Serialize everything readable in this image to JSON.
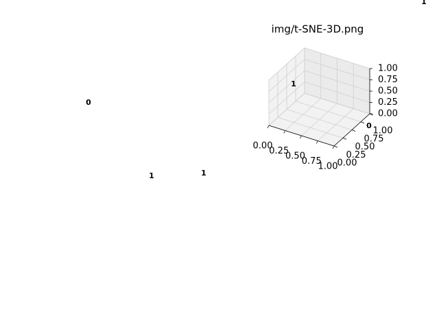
{
  "chart_data": {
    "type": "scatter3d",
    "title": "img/t-SNE-3D.png",
    "xlim": [
      0,
      1
    ],
    "ylim": [
      0,
      1
    ],
    "zlim": [
      0,
      1
    ],
    "xticks": [
      {
        "value": 0,
        "label": "0.00"
      },
      {
        "value": 0.25,
        "label": "0.25"
      },
      {
        "value": 0.5,
        "label": "0.50"
      },
      {
        "value": 0.75,
        "label": "0.75"
      },
      {
        "value": 1,
        "label": "1.00"
      }
    ],
    "yticks": [
      {
        "value": 0,
        "label": "0.00"
      },
      {
        "value": 0.25,
        "label": "0.25"
      },
      {
        "value": 0.5,
        "label": "0.50"
      },
      {
        "value": 0.75,
        "label": "0.75"
      },
      {
        "value": 1,
        "label": "1.00"
      }
    ],
    "zticks": [
      {
        "value": 0,
        "label": "0.00"
      },
      {
        "value": 0.25,
        "label": "0.25"
      },
      {
        "value": 0.5,
        "label": "0.50"
      },
      {
        "value": 0.75,
        "label": "0.75"
      },
      {
        "value": 1,
        "label": "1.00"
      }
    ],
    "grid": true,
    "annotations": [
      {
        "text": "1",
        "color": "#0000ff"
      },
      {
        "text": "0",
        "color": "#ff0000"
      },
      {
        "text": "1",
        "color": "#0000ff"
      },
      {
        "text": "0",
        "color": "#ff0000"
      },
      {
        "text": "1",
        "color": "#0000ff"
      },
      {
        "text": "1",
        "color": "#0000ff"
      }
    ]
  }
}
